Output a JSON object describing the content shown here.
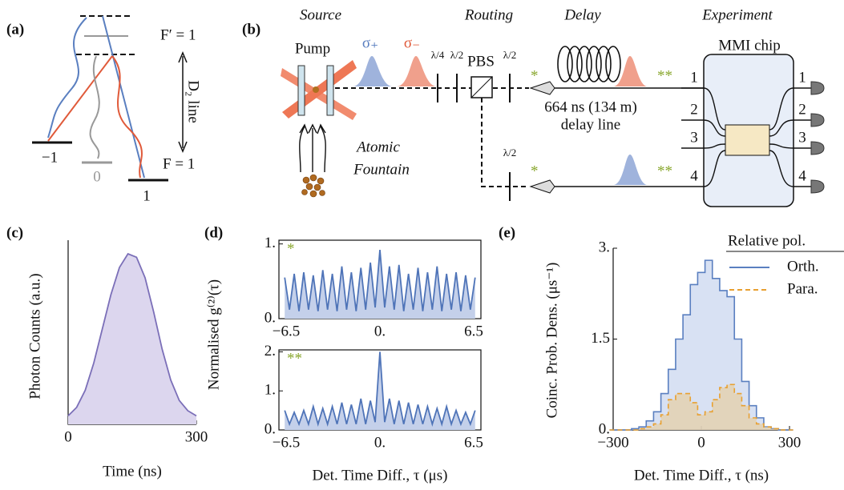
{
  "panel_labels": [
    "(a)",
    "(b)",
    "(c)",
    "(d)",
    "(e)"
  ],
  "level_diagram": {
    "upper_level": "F′ = 1",
    "transition": "D₂ line",
    "lower_level": "F = 1",
    "sublevels": [
      "−1",
      "0",
      "1"
    ]
  },
  "setup": {
    "sections": [
      "Source",
      "Routing",
      "Delay",
      "Experiment"
    ],
    "pump": "Pump",
    "polarisations": [
      "σ₊",
      "σ₋"
    ],
    "waveplates": [
      "λ/4",
      "λ/2",
      "λ/2",
      "λ/2"
    ],
    "pbs": "PBS",
    "delay": [
      "664 ns (134 m)",
      "delay line"
    ],
    "chip": "MMI chip",
    "source": [
      "Atomic",
      "Fountain"
    ],
    "ports_in": [
      "1",
      "2",
      "3",
      "4"
    ],
    "ports_out": [
      "1",
      "2",
      "3",
      "4"
    ],
    "markers": [
      "*",
      "**",
      "*",
      "**"
    ]
  },
  "chart_data": [
    {
      "type": "area",
      "xlabel": "Time (ns)",
      "ylabel": "Photon Counts (a.u.)",
      "color": "#7b6fb8",
      "x": [
        0,
        20,
        40,
        60,
        80,
        100,
        120,
        140,
        160,
        180,
        200,
        220,
        240,
        260,
        280,
        300
      ],
      "values": [
        0.05,
        0.1,
        0.2,
        0.36,
        0.56,
        0.76,
        0.92,
        1.0,
        0.98,
        0.86,
        0.66,
        0.44,
        0.26,
        0.14,
        0.08,
        0.05
      ],
      "xlim": [
        0,
        300
      ],
      "ylim": [
        0,
        1.08
      ],
      "xticks": [
        0,
        300
      ]
    },
    {
      "type": "area",
      "marker": "*",
      "ylabel": "Normalised g⁽²⁾(τ)",
      "color": "#4f74b8",
      "x": [
        -6.6,
        -6.27,
        -5.94,
        -5.61,
        -5.28,
        -4.95,
        -4.62,
        -4.29,
        -3.96,
        -3.63,
        -3.3,
        -2.97,
        -2.64,
        -2.31,
        -1.98,
        -1.65,
        -1.32,
        -0.99,
        -0.66,
        -0.33,
        0,
        0.33,
        0.66,
        0.99,
        1.32,
        1.65,
        1.98,
        2.31,
        2.64,
        2.97,
        3.3,
        3.63,
        3.96,
        4.29,
        4.62,
        4.95,
        5.28,
        5.61,
        5.94,
        6.27,
        6.6
      ],
      "values": [
        0.55,
        0.12,
        0.6,
        0.1,
        0.62,
        0.12,
        0.58,
        0.1,
        0.65,
        0.12,
        0.6,
        0.1,
        0.7,
        0.12,
        0.62,
        0.1,
        0.68,
        0.12,
        0.75,
        0.15,
        0.92,
        0.15,
        0.7,
        0.12,
        0.72,
        0.1,
        0.6,
        0.12,
        0.68,
        0.1,
        0.62,
        0.12,
        0.7,
        0.1,
        0.6,
        0.12,
        0.62,
        0.1,
        0.58,
        0.12,
        0.55
      ],
      "xlim": [
        -7,
        7
      ],
      "ylim": [
        0,
        1.05
      ],
      "xticks": [
        {
          "value": -6.5,
          "label": "−6.5"
        },
        {
          "value": 0,
          "label": "0."
        },
        6.5
      ],
      "yticks": [
        {
          "value": 0,
          "label": "0."
        },
        {
          "value": 1,
          "label": "1."
        }
      ]
    },
    {
      "type": "area",
      "marker": "**",
      "xlabel": "Det. Time Diff., τ (μs)",
      "color": "#4f74b8",
      "x": [
        -6.6,
        -6.27,
        -5.94,
        -5.61,
        -5.28,
        -4.95,
        -4.62,
        -4.29,
        -3.96,
        -3.63,
        -3.3,
        -2.97,
        -2.64,
        -2.31,
        -1.98,
        -1.65,
        -1.32,
        -0.99,
        -0.66,
        -0.33,
        0,
        0.33,
        0.66,
        0.99,
        1.32,
        1.65,
        1.98,
        2.31,
        2.64,
        2.97,
        3.3,
        3.63,
        3.96,
        4.29,
        4.62,
        4.95,
        5.28,
        5.61,
        5.94,
        6.27,
        6.6
      ],
      "values": [
        0.5,
        0.15,
        0.45,
        0.15,
        0.5,
        0.15,
        0.6,
        0.15,
        0.55,
        0.15,
        0.6,
        0.15,
        0.7,
        0.15,
        0.65,
        0.15,
        0.8,
        0.15,
        0.75,
        0.2,
        2.0,
        0.2,
        0.8,
        0.15,
        0.75,
        0.15,
        0.7,
        0.15,
        0.65,
        0.15,
        0.6,
        0.15,
        0.55,
        0.15,
        0.6,
        0.15,
        0.5,
        0.15,
        0.45,
        0.15,
        0.5
      ],
      "xlim": [
        -7,
        7
      ],
      "ylim": [
        0,
        2.05
      ],
      "xticks": [
        {
          "value": -6.5,
          "label": "−6.5"
        },
        {
          "value": 0,
          "label": "0."
        },
        6.5
      ],
      "yticks": [
        {
          "value": 0,
          "label": "0."
        },
        {
          "value": 1,
          "label": "1."
        },
        {
          "value": 2,
          "label": "2."
        }
      ]
    },
    {
      "type": "step",
      "xlabel": "Det. Time Diff., τ (ns)",
      "ylabel": "Coinc. Prob. Dens. (μs⁻¹)",
      "legend_title": "Relative pol.",
      "legend": "upper right",
      "x": [
        -300,
        -275,
        -250,
        -225,
        -200,
        -175,
        -150,
        -125,
        -100,
        -75,
        -50,
        -25,
        0,
        25,
        50,
        75,
        100,
        125,
        150,
        175,
        200,
        225,
        250,
        275,
        300
      ],
      "series": [
        {
          "name": "Orth.",
          "color": "#5a7fc0",
          "values": [
            0,
            0,
            0,
            0.02,
            0.05,
            0.15,
            0.3,
            0.6,
            1.0,
            1.5,
            1.9,
            2.4,
            2.6,
            2.8,
            2.5,
            2.3,
            2.2,
            1.5,
            0.8,
            0.4,
            0.2,
            0.05,
            0.02,
            0,
            0
          ]
        },
        {
          "name": "Para.",
          "color": "#e8a030",
          "values": [
            0,
            0,
            0,
            0,
            0.02,
            0.05,
            0.1,
            0.25,
            0.5,
            0.6,
            0.6,
            0.45,
            0.25,
            0.3,
            0.5,
            0.7,
            0.75,
            0.6,
            0.4,
            0.2,
            0.1,
            0.05,
            0.02,
            0,
            0
          ]
        }
      ],
      "xlim": [
        -300,
        300
      ],
      "ylim": [
        0,
        3
      ],
      "xticks": [
        {
          "value": -300,
          "label": "−300"
        },
        {
          "value": 0,
          "label": "0"
        },
        300
      ],
      "yticks": [
        {
          "value": 0,
          "label": "0."
        },
        1.5,
        {
          "value": 3,
          "label": "3."
        }
      ]
    }
  ]
}
